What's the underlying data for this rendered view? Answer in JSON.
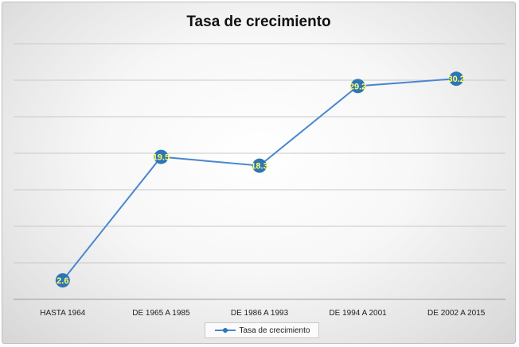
{
  "chart_data": {
    "type": "line",
    "title": "Tasa de crecimiento",
    "xlabel": "",
    "ylabel": "",
    "categories": [
      "HASTA 1964",
      "DE 1965 A 1985",
      "DE 1986 A 1993",
      "DE 1994 A 2001",
      "DE 2002 A 2015"
    ],
    "series": [
      {
        "name": "Tasa de crecimiento",
        "values": [
          2.6,
          19.5,
          18.3,
          29.2,
          30.2
        ],
        "data_labels": [
          "2.6",
          "19.5",
          "18.3",
          "29.2",
          "30.2"
        ],
        "color": "#4a86d0"
      }
    ],
    "ylim": [
      0,
      35
    ],
    "grid": true,
    "legend_position": "bottom",
    "marker_color": "#2e75b6",
    "label_color": "#ffff66"
  }
}
